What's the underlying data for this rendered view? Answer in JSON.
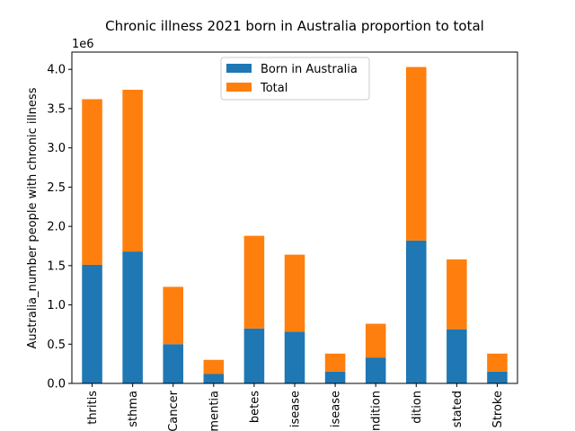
{
  "chart_data": {
    "type": "bar",
    "stacked": true,
    "title": "Chronic illness 2021 born in Australia proportion to total",
    "xlabel": "",
    "ylabel": "Australia_number people with chronic illness",
    "y_offset_text": "1e6",
    "ylim": [
      0,
      4.22
    ],
    "yticks": [
      0.0,
      0.5,
      1.0,
      1.5,
      2.0,
      2.5,
      3.0,
      3.5,
      4.0
    ],
    "ytick_labels": [
      "0.0",
      "0.5",
      "1.0",
      "1.5",
      "2.0",
      "2.5",
      "3.0",
      "3.5",
      "4.0"
    ],
    "grid": false,
    "legend_position": "top-center",
    "categories": [
      "thritis",
      "sthma",
      "Cancer",
      "mentia",
      "betes",
      "isease",
      "isease",
      "ndition",
      "dition",
      "stated",
      "Stroke"
    ],
    "series": [
      {
        "name": "Born in Australia",
        "color": "#1f77b4",
        "values": [
          1.51,
          1.68,
          0.5,
          0.12,
          0.7,
          0.66,
          0.15,
          0.33,
          1.82,
          0.69,
          0.15
        ]
      },
      {
        "name": "Total",
        "color": "#ff7f0e",
        "values": [
          2.11,
          2.06,
          0.73,
          0.18,
          1.18,
          0.98,
          0.23,
          0.43,
          2.21,
          0.89,
          0.23
        ]
      }
    ]
  }
}
